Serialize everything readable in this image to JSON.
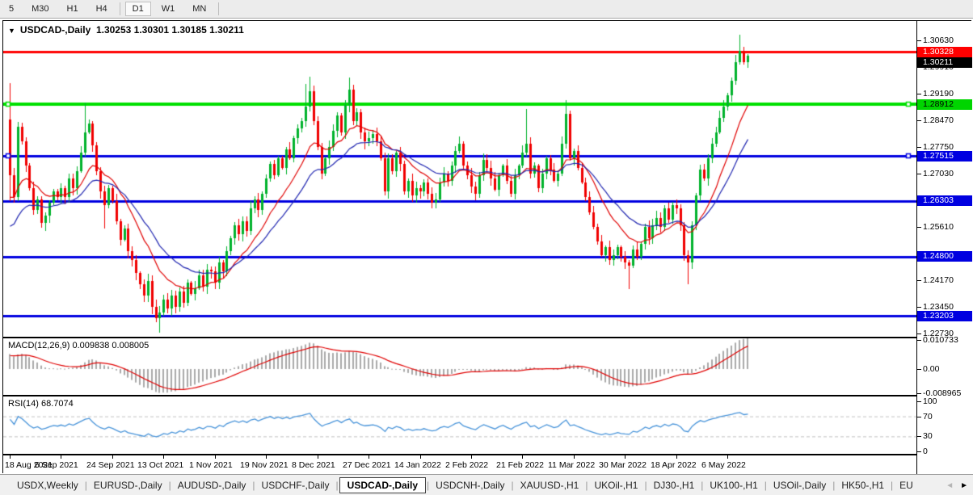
{
  "toolbar": {
    "timeframes": [
      "5",
      "M30",
      "H1",
      "H4",
      "D1",
      "W1",
      "MN"
    ],
    "active_timeframe": "D1"
  },
  "chart": {
    "title_symbol": "USDCAD-,Daily",
    "ohlc_text": "1.30253 1.30301 1.30185 1.30211",
    "open": "1.30253",
    "high": "1.30301",
    "low": "1.30185",
    "close": "1.30211"
  },
  "indicators": {
    "macd": {
      "label": "MACD(12,26,9) 0.009838 0.008005",
      "params": "12,26,9",
      "value_main": "0.009838",
      "value_signal": "0.008005",
      "axis_ticks": [
        {
          "label": "0.010733",
          "value": 0.010733
        },
        {
          "label": "0.00",
          "value": 0
        },
        {
          "label": "-0.008965",
          "value": -0.008965
        }
      ]
    },
    "rsi": {
      "label": "RSI(14) 68.7074",
      "params": "14",
      "value": "68.7074",
      "axis_ticks": [
        {
          "label": "100",
          "value": 100
        },
        {
          "label": "70",
          "value": 70
        },
        {
          "label": "30",
          "value": 30
        },
        {
          "label": "0",
          "value": 0
        }
      ],
      "levels": [
        70,
        30
      ]
    }
  },
  "price_axis": {
    "ticks": [
      {
        "label": "1.30630",
        "price": 1.3063
      },
      {
        "label": "1.29910",
        "price": 1.2991
      },
      {
        "label": "1.29190",
        "price": 1.2919
      },
      {
        "label": "1.28470",
        "price": 1.2847
      },
      {
        "label": "1.27750",
        "price": 1.2775
      },
      {
        "label": "1.27030",
        "price": 1.2703
      },
      {
        "label": "1.25610",
        "price": 1.2561
      },
      {
        "label": "1.24170",
        "price": 1.2417
      },
      {
        "label": "1.23450",
        "price": 1.2345
      },
      {
        "label": "1.22730",
        "price": 1.2273
      }
    ],
    "boxes": [
      {
        "label": "1.30328",
        "price": 1.30328,
        "bg": "#ff0000",
        "fg": "#ffffff"
      },
      {
        "label": "1.30211",
        "price": 1.30211,
        "bg": "#000000",
        "fg": "#ffffff"
      },
      {
        "label": "1.28912",
        "price": 1.28912,
        "bg": "#00d500",
        "fg": "#000000"
      },
      {
        "label": "1.27515",
        "price": 1.27515,
        "bg": "#0000e0",
        "fg": "#ffffff"
      },
      {
        "label": "1.26303",
        "price": 1.26303,
        "bg": "#0000e0",
        "fg": "#ffffff"
      },
      {
        "label": "1.24800",
        "price": 1.248,
        "bg": "#0000e0",
        "fg": "#ffffff"
      },
      {
        "label": "1.23203",
        "price": 1.23203,
        "bg": "#0000e0",
        "fg": "#ffffff"
      }
    ]
  },
  "chart_data": {
    "type": "candlestick",
    "symbol": "USDCAD",
    "timeframe": "Daily",
    "x_labels": [
      "18 Aug 2021",
      "6 Sep 2021",
      "24 Sep 2021",
      "13 Oct 2021",
      "1 Nov 2021",
      "19 Nov 2021",
      "8 Dec 2021",
      "27 Dec 2021",
      "14 Jan 2022",
      "2 Feb 2022",
      "21 Feb 2022",
      "11 Mar 2022",
      "30 Mar 2022",
      "18 Apr 2022",
      "6 May 2022"
    ],
    "bars_per_label": 13,
    "open_first": 1.285,
    "closes": [
      1.27,
      1.264,
      1.283,
      1.279,
      1.2725,
      1.2665,
      1.2605,
      1.2635,
      1.257,
      1.259,
      1.2625,
      1.2655,
      1.264,
      1.2665,
      1.264,
      1.269,
      1.2665,
      1.271,
      1.276,
      1.2815,
      1.284,
      1.278,
      1.271,
      1.2655,
      1.262,
      1.2665,
      1.263,
      1.2575,
      1.2525,
      1.2555,
      1.2495,
      1.247,
      1.2435,
      1.2405,
      1.2375,
      1.2415,
      1.2345,
      1.2315,
      1.233,
      1.2365,
      1.234,
      1.2375,
      1.2345,
      1.2385,
      1.2355,
      1.241,
      1.238,
      1.2395,
      1.243,
      1.24,
      1.2445,
      1.244,
      1.241,
      1.2465,
      1.244,
      1.2495,
      1.253,
      1.2565,
      1.254,
      1.2575,
      1.255,
      1.261,
      1.2635,
      1.2605,
      1.265,
      1.269,
      1.273,
      1.27,
      1.2745,
      1.272,
      1.277,
      1.2745,
      1.28,
      1.2825,
      1.2845,
      1.2885,
      1.2925,
      1.2845,
      1.2775,
      1.2705,
      1.2745,
      1.2775,
      1.282,
      1.286,
      1.2815,
      1.289,
      1.293,
      1.2845,
      1.287,
      1.2815,
      1.279,
      1.28,
      1.281,
      1.279,
      1.2745,
      1.2655,
      1.2745,
      1.271,
      1.276,
      1.273,
      1.2655,
      1.2685,
      1.2645,
      1.2665,
      1.2655,
      1.268,
      1.265,
      1.2625,
      1.2635,
      1.268,
      1.2705,
      1.2685,
      1.2725,
      1.2765,
      1.2785,
      1.2725,
      1.27,
      1.267,
      1.265,
      1.27,
      1.274,
      1.272,
      1.269,
      1.266,
      1.27,
      1.2725,
      1.2685,
      1.265,
      1.27,
      1.2725,
      1.276,
      1.2785,
      1.2705,
      1.2725,
      1.2665,
      1.2705,
      1.2745,
      1.2715,
      1.2685,
      1.2705,
      1.2785,
      1.2865,
      1.2745,
      1.2765,
      1.272,
      1.268,
      1.264,
      1.26,
      1.256,
      1.252,
      1.2485,
      1.2505,
      1.247,
      1.2485,
      1.2505,
      1.248,
      1.2465,
      1.2455,
      1.25,
      1.248,
      1.2515,
      1.256,
      1.253,
      1.2565,
      1.2585,
      1.256,
      1.261,
      1.258,
      1.262,
      1.261,
      1.2565,
      1.2485,
      1.2465,
      1.2565,
      1.2645,
      1.2715,
      1.269,
      1.2745,
      1.2785,
      1.2815,
      1.2855,
      1.2885,
      1.2915,
      1.2955,
      1.3005,
      1.3035,
      1.3005,
      1.3021
    ],
    "wick_overrides": {
      "0": {
        "high": 1.2948,
        "low": 1.263
      },
      "19": {
        "high": 1.2895
      },
      "24": {
        "low": 1.2555
      },
      "38": {
        "low": 1.2275
      },
      "75": {
        "high": 1.2945
      },
      "76": {
        "high": 1.2965
      },
      "86": {
        "high": 1.2963
      },
      "131": {
        "high": 1.2878
      },
      "141": {
        "high": 1.2902
      },
      "157": {
        "low": 1.2392
      },
      "172": {
        "low": 1.2405
      },
      "185": {
        "high": 1.3078
      }
    },
    "hlines": [
      {
        "price": 1.30328,
        "color": "#ff0000",
        "width": 3,
        "handles": false
      },
      {
        "price": 1.28912,
        "color": "#00e000",
        "width": 4,
        "handles": true
      },
      {
        "price": 1.27515,
        "color": "#0000e0",
        "width": 3,
        "handles": true
      },
      {
        "price": 1.26303,
        "color": "#0000e0",
        "width": 3,
        "handles": false
      },
      {
        "price": 1.248,
        "color": "#0000e0",
        "width": 3,
        "handles": false
      },
      {
        "price": 1.23203,
        "color": "#0000e0",
        "width": 3,
        "handles": false
      }
    ],
    "colors": {
      "up": "#00b22c",
      "down": "#f00000",
      "ma_fast": "#e00000",
      "ma_slow": "#2026b0",
      "macd_hist": "#aaaaaa",
      "macd_signal": "#e00000",
      "rsi_line": "#4793d9",
      "rsi_level": "#c0c0c0"
    }
  },
  "tabbar": {
    "tabs": [
      "USDX,Weekly",
      "EURUSD-,Daily",
      "AUDUSD-,Daily",
      "USDCHF-,Daily",
      "USDCAD-,Daily",
      "USDCNH-,Daily",
      "XAUUSD-,H1",
      "UKOil-,H1",
      "DJ30-,H1",
      "UK100-,H1",
      "USOil-,Daily",
      "HK50-,H1",
      "EU"
    ],
    "active_tab": "USDCAD-,Daily",
    "arrow_left": "◄",
    "arrow_right": "►"
  }
}
